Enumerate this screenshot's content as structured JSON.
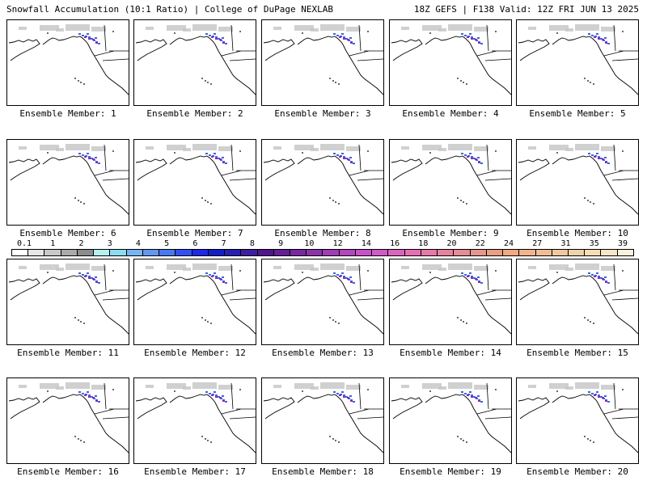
{
  "header": {
    "left": "Snowfall Accumulation (10:1 Ratio) | College of DuPage NEXLAB",
    "right": "18Z GEFS | F138 Valid: 12Z FRI JUN 13 2025"
  },
  "colorbar": {
    "labels": [
      "0.1",
      "1",
      "2",
      "3",
      "4",
      "5",
      "6",
      "7",
      "8",
      "9",
      "10",
      "12",
      "14",
      "16",
      "18",
      "20",
      "22",
      "24",
      "27",
      "31",
      "35",
      "39"
    ],
    "colors": [
      "#ffffff",
      "#e6e6e6",
      "#c8c8c8",
      "#aaaaaa",
      "#8c8c8c",
      "#b4f0f0",
      "#8cdcf0",
      "#78b4f0",
      "#6496f0",
      "#4a78f0",
      "#3250f0",
      "#1e28e6",
      "#141ec8",
      "#281eb4",
      "#3c1ea0",
      "#50148c",
      "#641e96",
      "#7828a0",
      "#8c32aa",
      "#a03cb4",
      "#b446be",
      "#c850c8",
      "#d25ac8",
      "#dc64be",
      "#e66eb4",
      "#e678aa",
      "#e682a0",
      "#e68c96",
      "#e6968c",
      "#e6a082",
      "#f0aa82",
      "#f0b48c",
      "#f0be96",
      "#f0c8a0",
      "#f0d2aa",
      "#f5dcb4",
      "#f5e6c8",
      "#faf0dc"
    ]
  },
  "panels": [
    {
      "label": "Ensemble Member: 1"
    },
    {
      "label": "Ensemble Member: 2"
    },
    {
      "label": "Ensemble Member: 3"
    },
    {
      "label": "Ensemble Member: 4"
    },
    {
      "label": "Ensemble Member: 5"
    },
    {
      "label": "Ensemble Member: 6"
    },
    {
      "label": "Ensemble Member: 7"
    },
    {
      "label": "Ensemble Member: 8"
    },
    {
      "label": "Ensemble Member: 9"
    },
    {
      "label": "Ensemble Member: 10"
    },
    {
      "label": "Ensemble Member: 11"
    },
    {
      "label": "Ensemble Member: 12"
    },
    {
      "label": "Ensemble Member: 13"
    },
    {
      "label": "Ensemble Member: 14"
    },
    {
      "label": "Ensemble Member: 15"
    },
    {
      "label": "Ensemble Member: 16"
    },
    {
      "label": "Ensemble Member: 17"
    },
    {
      "label": "Ensemble Member: 18"
    },
    {
      "label": "Ensemble Member: 19"
    },
    {
      "label": "Ensemble Member: 20"
    }
  ]
}
